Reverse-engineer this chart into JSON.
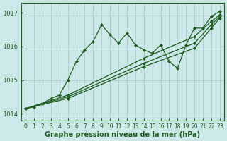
{
  "xlabel": "Graphe pression niveau de la mer (hPa)",
  "xlim": [
    -0.5,
    23.5
  ],
  "ylim": [
    1013.8,
    1017.3
  ],
  "yticks": [
    1014,
    1015,
    1016,
    1017
  ],
  "xticks": [
    0,
    1,
    2,
    3,
    4,
    5,
    6,
    7,
    8,
    9,
    10,
    11,
    12,
    13,
    14,
    15,
    16,
    17,
    18,
    19,
    20,
    21,
    22,
    23
  ],
  "background_color": "#cce8e8",
  "grid_color": "#aacccc",
  "line_color": "#1a5c1a",
  "series": [
    {
      "x": [
        0,
        1,
        2,
        3,
        4,
        5,
        6,
        7,
        8,
        9,
        10,
        11,
        12,
        13,
        14,
        15,
        16,
        17,
        18,
        19,
        20,
        21,
        22,
        23
      ],
      "y": [
        1014.15,
        1014.2,
        1014.3,
        1014.45,
        1014.55,
        1015.0,
        1015.55,
        1015.9,
        1016.15,
        1016.65,
        1016.35,
        1016.1,
        1016.4,
        1016.05,
        1015.9,
        1015.8,
        1016.05,
        1015.55,
        1015.35,
        1016.05,
        1016.55,
        1016.55,
        1016.9,
        1017.05
      ]
    },
    {
      "x": [
        0,
        5,
        14,
        20,
        22,
        23
      ],
      "y": [
        1014.15,
        1014.55,
        1015.65,
        1016.3,
        1016.75,
        1016.95
      ]
    },
    {
      "x": [
        0,
        5,
        14,
        20,
        22,
        23
      ],
      "y": [
        1014.15,
        1014.5,
        1015.5,
        1016.1,
        1016.65,
        1016.9
      ]
    },
    {
      "x": [
        0,
        5,
        14,
        20,
        22,
        23
      ],
      "y": [
        1014.15,
        1014.45,
        1015.4,
        1015.95,
        1016.55,
        1016.85
      ]
    }
  ],
  "marker": "D",
  "markersize": 2.2,
  "linewidth": 0.9,
  "font_color": "#1a5c1a",
  "label_fontsize": 7,
  "tick_fontsize": 5.5
}
